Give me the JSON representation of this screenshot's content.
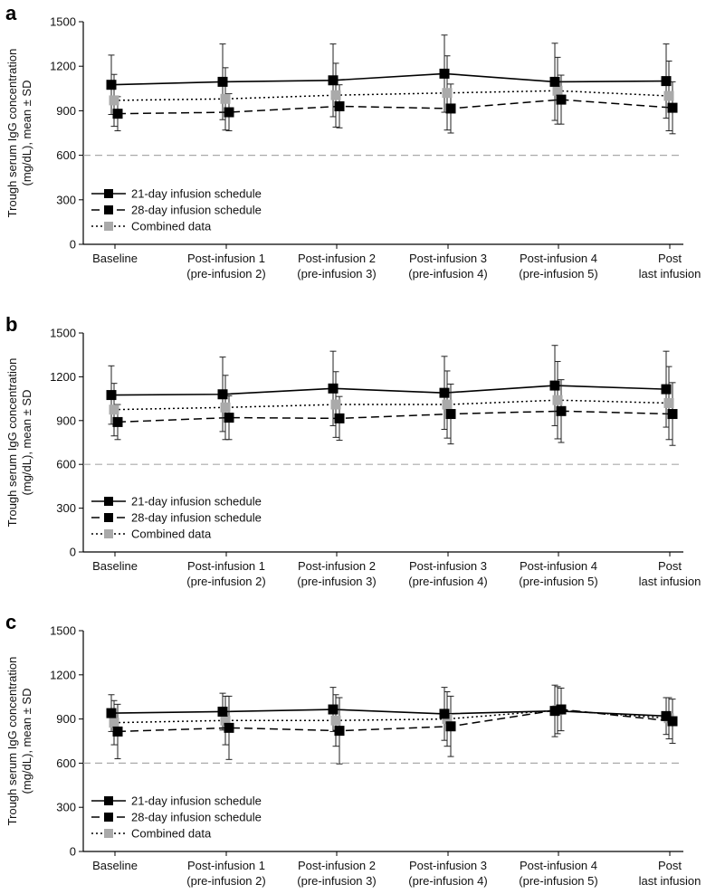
{
  "chart_data": [
    {
      "type": "line",
      "panel_label": "a",
      "ylabel": "Trough serum IgG concentration (mg/dL), mean ± SD",
      "ylabel_lines": [
        "Trough serum IgG concentration",
        "(mg/dL), mean ± SD"
      ],
      "ylim": [
        0,
        1500
      ],
      "yticks": [
        "0",
        "300",
        "600",
        "900",
        "1200",
        "1500"
      ],
      "reference_line": 600,
      "categories": [
        [
          "Baseline"
        ],
        [
          "Post-infusion 1",
          "(pre-infusion 2)"
        ],
        [
          "Post-infusion 2",
          "(pre-infusion 3)"
        ],
        [
          "Post-infusion 3",
          "(pre-infusion 4)"
        ],
        [
          "Post-infusion 4",
          "(pre-infusion 5)"
        ],
        [
          "Post",
          "last infusion"
        ]
      ],
      "series": [
        {
          "name": "21-day infusion schedule",
          "style": "solid",
          "color": "#000000",
          "values": [
            1075,
            1095,
            1105,
            1150,
            1095,
            1100
          ],
          "sd": [
            200,
            255,
            245,
            260,
            260,
            250
          ]
        },
        {
          "name": "28-day infusion schedule",
          "style": "dashed",
          "color": "#000000",
          "values": [
            880,
            890,
            930,
            915,
            975,
            920
          ],
          "sd": [
            115,
            125,
            145,
            165,
            165,
            175
          ]
        },
        {
          "name": "Combined data",
          "style": "dotted",
          "color": "#aaaaaa",
          "values": [
            970,
            980,
            1005,
            1020,
            1035,
            1000
          ],
          "sd": [
            175,
            210,
            215,
            250,
            225,
            235
          ]
        }
      ]
    },
    {
      "type": "line",
      "panel_label": "b",
      "ylabel": "Trough serum IgG concentration (mg/dL), mean ± SD",
      "ylabel_lines": [
        "Trough serum IgG concentration",
        "(mg/dL), mean ± SD"
      ],
      "ylim": [
        0,
        1500
      ],
      "yticks": [
        "0",
        "300",
        "600",
        "900",
        "1200",
        "1500"
      ],
      "reference_line": 600,
      "categories": [
        [
          "Baseline"
        ],
        [
          "Post-infusion 1",
          "(pre-infusion 2)"
        ],
        [
          "Post-infusion 2",
          "(pre-infusion 3)"
        ],
        [
          "Post-infusion 3",
          "(pre-infusion 4)"
        ],
        [
          "Post-infusion 4",
          "(pre-infusion 5)"
        ],
        [
          "Post",
          "last infusion"
        ]
      ],
      "series": [
        {
          "name": "21-day infusion schedule",
          "style": "solid",
          "color": "#000000",
          "values": [
            1075,
            1080,
            1120,
            1090,
            1140,
            1115
          ],
          "sd": [
            200,
            255,
            255,
            250,
            275,
            260
          ]
        },
        {
          "name": "28-day infusion schedule",
          "style": "dashed",
          "color": "#000000",
          "values": [
            890,
            920,
            915,
            945,
            965,
            945
          ],
          "sd": [
            120,
            150,
            150,
            205,
            215,
            215
          ]
        },
        {
          "name": "Combined data",
          "style": "dotted",
          "color": "#aaaaaa",
          "values": [
            975,
            990,
            1010,
            1010,
            1040,
            1020
          ],
          "sd": [
            180,
            220,
            225,
            230,
            265,
            250
          ]
        }
      ]
    },
    {
      "type": "line",
      "panel_label": "c",
      "ylabel": "Trough serum IgG concentration (mg/dL), mean ± SD",
      "ylabel_lines": [
        "Trough serum IgG concentration",
        "(mg/dL), mean ± SD"
      ],
      "ylim": [
        0,
        1500
      ],
      "yticks": [
        "0",
        "300",
        "600",
        "900",
        "1200",
        "1500"
      ],
      "reference_line": 600,
      "categories": [
        [
          "Baseline"
        ],
        [
          "Post-infusion 1",
          "(pre-infusion 2)"
        ],
        [
          "Post-infusion 2",
          "(pre-infusion 3)"
        ],
        [
          "Post-infusion 3",
          "(pre-infusion 4)"
        ],
        [
          "Post-infusion 4",
          "(pre-infusion 5)"
        ],
        [
          "Post",
          "last infusion"
        ]
      ],
      "series": [
        {
          "name": "21-day infusion schedule",
          "style": "solid",
          "color": "#000000",
          "values": [
            940,
            950,
            965,
            935,
            955,
            920
          ],
          "sd": [
            125,
            125,
            150,
            180,
            175,
            125
          ]
        },
        {
          "name": "28-day infusion schedule",
          "style": "dashed",
          "color": "#000000",
          "values": [
            815,
            840,
            820,
            850,
            965,
            885
          ],
          "sd": [
            185,
            215,
            225,
            205,
            145,
            150
          ]
        },
        {
          "name": "Combined data",
          "style": "dotted",
          "color": "#aaaaaa",
          "values": [
            875,
            890,
            890,
            900,
            960,
            905
          ],
          "sd": [
            150,
            165,
            175,
            185,
            160,
            140
          ]
        }
      ]
    }
  ]
}
